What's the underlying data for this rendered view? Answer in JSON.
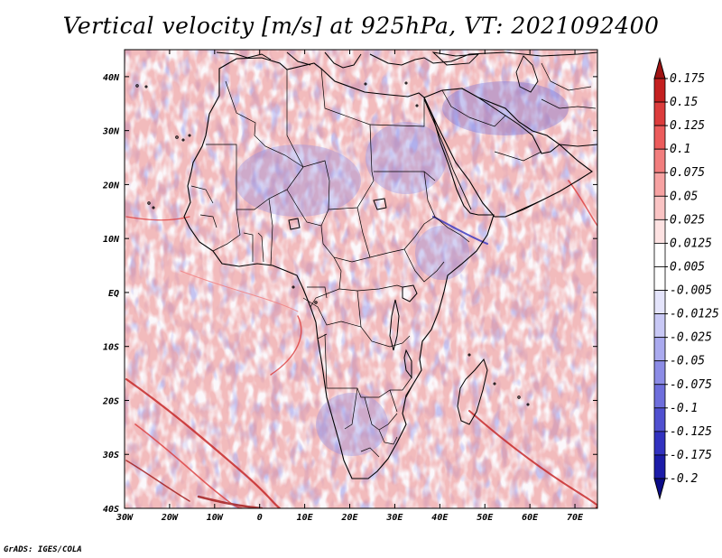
{
  "title": "Vertical velocity [m/s] at 925hPa, VT: 2021092400",
  "credit": "GrADS: IGES/COLA",
  "map": {
    "lon_range": [
      -30,
      75
    ],
    "lat_range": [
      -40,
      45
    ],
    "lat_ticks": [
      "40N",
      "30N",
      "20N",
      "10N",
      "EQ",
      "10S",
      "20S",
      "30S",
      "40S"
    ],
    "lon_ticks": [
      "30W",
      "20W",
      "10W",
      "0",
      "10E",
      "20E",
      "30E",
      "40E",
      "50E",
      "60E",
      "70E"
    ]
  },
  "colorbar": {
    "labels": [
      "0.175",
      "0.15",
      "0.125",
      "0.1",
      "0.075",
      "0.05",
      "0.025",
      "0.0125",
      "0.005",
      "-0.005",
      "-0.0125",
      "-0.025",
      "-0.05",
      "-0.075",
      "-0.1",
      "-0.125",
      "-0.175",
      "-0.2"
    ],
    "colors": [
      "#a01414",
      "#c42020",
      "#dc3c3c",
      "#ec5c5c",
      "#f27e7e",
      "#f7a2a2",
      "#fac4c4",
      "#fde2e2",
      "#ffffff",
      "#ffffff",
      "#e4e4fb",
      "#c8c8f5",
      "#aaaaef",
      "#8c8ce6",
      "#6e6edc",
      "#5050d0",
      "#3232c0",
      "#1c1ca8",
      "#0c0c88"
    ]
  }
}
